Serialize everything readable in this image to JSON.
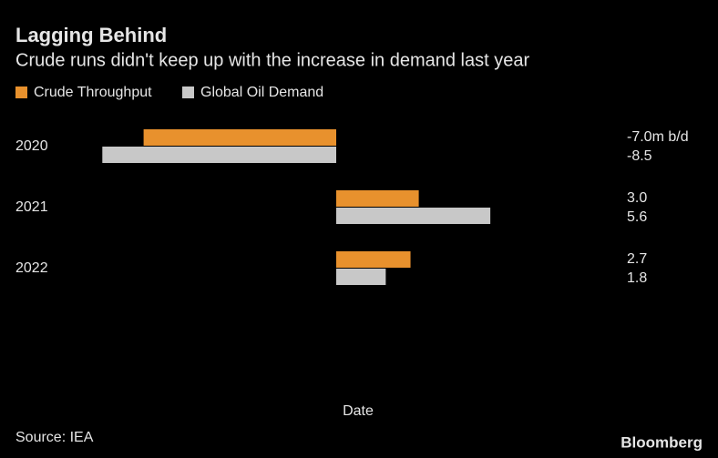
{
  "chart_data": {
    "type": "hbar",
    "title": "Lagging Behind",
    "subtitle": "Crude runs didn't keep up with the increase in demand last year",
    "categories": [
      "2020",
      "2021",
      "2022"
    ],
    "series": [
      {
        "name": "Crude Throughput",
        "color": "#e8912d",
        "values": [
          -7.0,
          3.0,
          2.7
        ],
        "value_labels": [
          "-7.0m b/d",
          "3.0",
          "2.7"
        ]
      },
      {
        "name": "Global Oil Demand",
        "color": "#c8c8c8",
        "values": [
          -8.5,
          5.6,
          1.8
        ],
        "value_labels": [
          "-8.5",
          "5.6",
          "1.8"
        ]
      }
    ],
    "xlabel": "Date",
    "xlim": [
      -10,
      10
    ],
    "legend": "top-left",
    "source": "Source: IEA",
    "brand": "Bloomberg"
  }
}
